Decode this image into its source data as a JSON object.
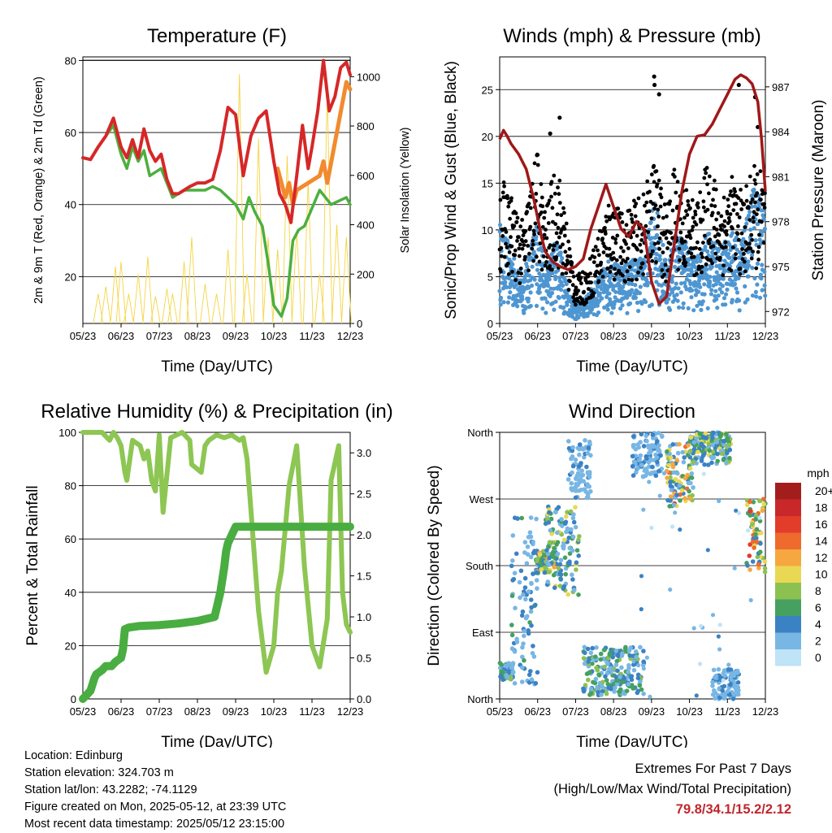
{
  "chart_data": [
    {
      "type": "line",
      "title": "Temperature (F)",
      "xlabel": "Time (Day/UTC)",
      "ylabel": "2m & 9m T (Red, Orange) & 2m Td (Green)",
      "y2label": "Solar Insolation (Yellow)",
      "x_ticks": [
        "05/23",
        "06/23",
        "07/23",
        "08/23",
        "09/23",
        "10/23",
        "11/23",
        "12/23"
      ],
      "ylim": [
        7,
        81
      ],
      "y_ticks": [
        20,
        40,
        60,
        80
      ],
      "y2lim": [
        0,
        1080
      ],
      "y2_ticks": [
        0,
        200,
        400,
        600,
        800,
        1000
      ],
      "grid": true,
      "series": [
        {
          "name": "2m T",
          "color": "#d62728",
          "x": [
            0,
            0.2,
            0.4,
            0.6,
            0.8,
            1,
            1.15,
            1.3,
            1.45,
            1.6,
            1.75,
            1.9,
            2.05,
            2.2,
            2.35,
            2.5,
            2.65,
            2.8,
            3,
            3.2,
            3.4,
            3.6,
            3.8,
            4,
            4.2,
            4.4,
            4.6,
            4.8,
            5,
            5.15,
            5.3,
            5.45,
            5.6,
            5.75,
            5.9,
            6,
            6.15,
            6.3,
            6.45,
            6.6,
            6.75,
            6.9,
            7
          ],
          "y": [
            53,
            52.5,
            56,
            59,
            64,
            56,
            53,
            58,
            53,
            61,
            55,
            52,
            54,
            47,
            43,
            43,
            44,
            45,
            46,
            46,
            47,
            55,
            67,
            65,
            48,
            59,
            64,
            66,
            52,
            43,
            40,
            35,
            48,
            62,
            50,
            56,
            66,
            80,
            66,
            70,
            78,
            79.5,
            76
          ]
        },
        {
          "name": "9m T",
          "color": "#f28a2e",
          "x": [
            5.1,
            5.2,
            5.3,
            5.4,
            5.5,
            5.6,
            6.2,
            6.3,
            6.4,
            6.9,
            7
          ],
          "y": [
            50,
            46,
            42,
            46,
            40,
            44,
            48,
            52,
            46,
            74,
            72
          ]
        },
        {
          "name": "2m Td",
          "color": "#4caf3e",
          "x": [
            0,
            0.2,
            0.4,
            0.6,
            0.8,
            1,
            1.15,
            1.3,
            1.45,
            1.6,
            1.75,
            1.9,
            2.05,
            2.2,
            2.35,
            2.5,
            2.65,
            2.8,
            3,
            3.2,
            3.4,
            3.6,
            3.8,
            4,
            4.2,
            4.35,
            4.5,
            4.7,
            4.85,
            5,
            5.2,
            5.35,
            5.5,
            5.65,
            5.8,
            6.2,
            6.5,
            6.9,
            7
          ],
          "y": [
            53,
            52.5,
            56,
            59,
            62,
            54,
            50,
            56,
            52,
            55,
            48,
            49,
            50,
            46,
            42,
            43,
            44,
            44,
            44,
            44,
            45,
            44,
            42,
            40,
            36,
            42,
            38,
            34,
            24,
            12,
            9,
            14,
            30,
            33,
            34,
            44,
            40,
            42,
            40
          ]
        },
        {
          "name": "Solar Insolation",
          "color": "#f5d442",
          "axis": "y2",
          "peaks": [
            [
              0.4,
              120
            ],
            [
              0.6,
              150
            ],
            [
              0.85,
              230
            ],
            [
              1,
              250
            ],
            [
              1.2,
              120
            ],
            [
              1.45,
              200
            ],
            [
              1.7,
              270
            ],
            [
              1.9,
              110
            ],
            [
              2.2,
              140
            ],
            [
              2.35,
              120
            ],
            [
              2.65,
              250
            ],
            [
              2.85,
              350
            ],
            [
              3.2,
              160
            ],
            [
              3.5,
              120
            ],
            [
              3.8,
              300
            ],
            [
              4.1,
              1010
            ],
            [
              4.3,
              200
            ],
            [
              4.6,
              750
            ],
            [
              4.85,
              350
            ],
            [
              5.1,
              300
            ],
            [
              5.35,
              680
            ],
            [
              5.6,
              380
            ],
            [
              5.9,
              580
            ],
            [
              6.2,
              200
            ],
            [
              6.4,
              950
            ],
            [
              6.65,
              400
            ],
            [
              6.9,
              350
            ]
          ]
        }
      ]
    },
    {
      "type": "scatter",
      "title": "Winds (mph) & Pressure (mb)",
      "xlabel": "Time (Day/UTC)",
      "ylabel": "Sonic/Prop Wind & Gust (Blue, Black)",
      "y2label": "Station Pressure (Maroon)",
      "x_ticks": [
        "05/23",
        "06/23",
        "07/23",
        "08/23",
        "09/23",
        "10/23",
        "11/23",
        "12/23"
      ],
      "ylim": [
        0,
        28.5
      ],
      "y_ticks": [
        0,
        5,
        10,
        15,
        20,
        25
      ],
      "y2lim": [
        971.2,
        989
      ],
      "y2_ticks": [
        972,
        975,
        978,
        981,
        984,
        987
      ],
      "grid": true,
      "series": [
        {
          "name": "Gust",
          "color": "#000000",
          "envelope": [
            [
              0,
              16
            ],
            [
              0.3,
              14
            ],
            [
              0.6,
              11
            ],
            [
              0.9,
              17
            ],
            [
              1,
              19
            ],
            [
              1.2,
              12
            ],
            [
              1.5,
              18
            ],
            [
              1.8,
              10
            ],
            [
              2,
              5
            ],
            [
              2.3,
              6
            ],
            [
              2.6,
              10
            ],
            [
              2.9,
              14
            ],
            [
              3.2,
              12
            ],
            [
              3.5,
              13
            ],
            [
              3.8,
              14
            ],
            [
              4.1,
              18
            ],
            [
              4.4,
              12
            ],
            [
              4.6,
              17
            ],
            [
              4.9,
              15
            ],
            [
              5.2,
              13
            ],
            [
              5.5,
              18
            ],
            [
              5.8,
              14
            ],
            [
              6.1,
              16
            ],
            [
              6.4,
              14
            ],
            [
              6.7,
              17
            ],
            [
              7,
              16
            ]
          ],
          "extra": [
            [
              1.33,
              20.3
            ],
            [
              1.58,
              22
            ],
            [
              4.08,
              25.5
            ],
            [
              4.07,
              26.4
            ],
            [
              4.2,
              24.5
            ],
            [
              6.3,
              25.5
            ],
            [
              6.73,
              24.2
            ],
            [
              6.8,
              21
            ]
          ]
        },
        {
          "name": "Wind",
          "color": "#4e96d1",
          "envelope": [
            [
              0,
              11
            ],
            [
              0.3,
              8
            ],
            [
              0.6,
              5
            ],
            [
              0.9,
              10
            ],
            [
              1,
              12
            ],
            [
              1.2,
              5
            ],
            [
              1.5,
              10
            ],
            [
              1.8,
              4
            ],
            [
              2,
              2
            ],
            [
              2.3,
              3
            ],
            [
              2.6,
              5
            ],
            [
              2.9,
              7
            ],
            [
              3.2,
              6
            ],
            [
              3.5,
              7
            ],
            [
              3.8,
              7
            ],
            [
              4.1,
              14
            ],
            [
              4.4,
              6
            ],
            [
              4.6,
              10
            ],
            [
              4.9,
              9
            ],
            [
              5.2,
              7
            ],
            [
              5.5,
              10
            ],
            [
              5.8,
              8
            ],
            [
              6.1,
              10
            ],
            [
              6.4,
              9
            ],
            [
              6.7,
              15
            ],
            [
              7,
              12
            ]
          ]
        },
        {
          "name": "Station Pressure",
          "color": "#a01818",
          "axis": "y2",
          "x": [
            0,
            0.1,
            0.2,
            0.3,
            0.5,
            0.7,
            0.9,
            1.1,
            1.2,
            1.4,
            1.6,
            1.8,
            2,
            2.2,
            2.4,
            2.6,
            2.8,
            3,
            3.2,
            3.4,
            3.6,
            3.8,
            4,
            4.2,
            4.4,
            4.6,
            4.8,
            5,
            5.2,
            5.4,
            5.6,
            5.8,
            6,
            6.2,
            6.35,
            6.5,
            6.65,
            6.8,
            6.9,
            7
          ],
          "y": [
            983.5,
            984.1,
            983.7,
            983.2,
            982.5,
            981.5,
            979.5,
            977,
            976,
            975.3,
            975,
            974.8,
            975,
            975.5,
            977.5,
            979,
            980.5,
            979,
            977.5,
            977,
            978,
            977.5,
            974,
            972.5,
            973,
            976.5,
            980,
            982.5,
            983.7,
            983.8,
            984.5,
            985.5,
            986.5,
            987.5,
            987.8,
            987.6,
            987.2,
            986,
            983.5,
            980
          ]
        }
      ]
    },
    {
      "type": "line",
      "title": "Relative Humidity (%) & Precipitation (in)",
      "xlabel": "Time (Day/UTC)",
      "ylabel": "Percent & Total Rainfall",
      "x_ticks": [
        "05/23",
        "06/23",
        "07/23",
        "08/23",
        "09/23",
        "10/23",
        "11/23",
        "12/23"
      ],
      "ylim": [
        0,
        100
      ],
      "y_ticks": [
        0,
        20,
        40,
        60,
        80,
        100
      ],
      "y2lim": [
        0,
        3.25
      ],
      "y2_ticks": [
        "0.0",
        "0.5",
        "1.0",
        "1.5",
        "2.0",
        "2.5",
        "3.0"
      ],
      "grid": true,
      "series": [
        {
          "name": "Relative Humidity",
          "color": "#8dc653",
          "x": [
            0,
            0.5,
            0.7,
            0.8,
            0.9,
            1,
            1.1,
            1.15,
            1.3,
            1.5,
            1.6,
            1.7,
            1.8,
            1.9,
            2,
            2.1,
            2.3,
            2.6,
            2.8,
            2.85,
            3.1,
            3.2,
            3.3,
            3.5,
            3.7,
            3.9,
            4.1,
            4.2,
            4.3,
            4.6,
            4.8,
            5,
            5.1,
            5.2,
            5.4,
            5.6,
            5.8,
            6,
            6.2,
            6.4,
            6.5,
            6.7,
            6.8,
            6.9,
            7
          ],
          "y": [
            100,
            100,
            97,
            100,
            98,
            95,
            85,
            82,
            97,
            95,
            90,
            93,
            82,
            78,
            99,
            70,
            98,
            100,
            97,
            88,
            85,
            95,
            97,
            99,
            98,
            99,
            97,
            98,
            90,
            33,
            10,
            20,
            40,
            48,
            80,
            95,
            50,
            20,
            12,
            30,
            82,
            95,
            40,
            28,
            25
          ]
        },
        {
          "name": "Total Rainfall",
          "color": "#49ad41",
          "axis": "y2",
          "x": [
            0,
            0.1,
            0.2,
            0.3,
            0.35,
            0.5,
            0.6,
            0.75,
            0.85,
            1,
            1.05,
            1.1,
            1.2,
            1.5,
            2,
            2.5,
            3,
            3.45,
            3.6,
            3.7,
            3.75,
            3.8,
            4,
            4.5,
            5,
            5.5,
            6,
            6.5,
            7
          ],
          "y": [
            0,
            0.05,
            0.1,
            0.25,
            0.3,
            0.35,
            0.4,
            0.4,
            0.45,
            0.5,
            0.6,
            0.85,
            0.87,
            0.89,
            0.9,
            0.92,
            0.95,
            1.0,
            1.3,
            1.6,
            1.8,
            1.9,
            2.1,
            2.1,
            2.1,
            2.1,
            2.1,
            2.1,
            2.1
          ]
        }
      ]
    },
    {
      "type": "scatter",
      "title": "Wind Direction",
      "xlabel": "Time (Day/UTC)",
      "ylabel": "Direction (Colored By Speed)",
      "x_ticks": [
        "05/23",
        "06/23",
        "07/23",
        "08/23",
        "09/23",
        "10/23",
        "11/23",
        "12/23"
      ],
      "y_ticks": [
        "North",
        "East",
        "South",
        "West",
        "North"
      ],
      "ylim": [
        0,
        360
      ],
      "colorbar_title": "mph",
      "colorbar_labels": [
        "20+",
        "18",
        "16",
        "14",
        "12",
        "10",
        "8",
        "6",
        "4",
        "2",
        "0"
      ],
      "colorbar_colors": [
        "#a31d1d",
        "#c8282a",
        "#e23c2a",
        "#ee6a2d",
        "#f6a73f",
        "#e9d853",
        "#8cc152",
        "#46a060",
        "#3b82c4",
        "#78b6e4",
        "#bfe3f7"
      ],
      "grid": true,
      "clusters": [
        {
          "x": [
            0,
            0.35
          ],
          "dir": [
            25,
            50
          ],
          "speed": [
            2,
            8
          ]
        },
        {
          "x": [
            0.3,
            1.0
          ],
          "dir": [
            20,
            250
          ],
          "speed": [
            1,
            6
          ]
        },
        {
          "x": [
            0.95,
            1.5
          ],
          "dir": [
            170,
            200
          ],
          "speed": [
            4,
            12
          ]
        },
        {
          "x": [
            1.2,
            2.1
          ],
          "dir": [
            140,
            260
          ],
          "speed": [
            2,
            10
          ]
        },
        {
          "x": [
            1.8,
            2.4
          ],
          "dir": [
            270,
            350
          ],
          "speed": [
            1,
            4
          ]
        },
        {
          "x": [
            2.2,
            3.8
          ],
          "dir": [
            5,
            70
          ],
          "speed": [
            2,
            8
          ]
        },
        {
          "x": [
            3.5,
            4.3
          ],
          "dir": [
            300,
            360
          ],
          "speed": [
            1,
            4
          ]
        },
        {
          "x": [
            4.4,
            5.1
          ],
          "dir": [
            260,
            345
          ],
          "speed": [
            2,
            16
          ]
        },
        {
          "x": [
            5.0,
            6.1
          ],
          "dir": [
            315,
            360
          ],
          "speed": [
            2,
            10
          ]
        },
        {
          "x": [
            5.6,
            6.3
          ],
          "dir": [
            0,
            40
          ],
          "speed": [
            1,
            5
          ]
        },
        {
          "x": [
            6.5,
            7.0
          ],
          "dir": [
            170,
            270
          ],
          "speed": [
            4,
            16
          ]
        }
      ]
    }
  ],
  "footer": {
    "location": "Location: Edinburg",
    "elevation": "Station elevation: 324.703 m",
    "latlon": "Station lat/lon: 43.2282; -74.1129",
    "created": "Figure created on Mon, 2025-05-12, at 23:39 UTC",
    "recent": "Most recent data timestamp: 2025/05/12 23:15:00"
  },
  "extremes": {
    "title": "Extremes For Past 7 Days",
    "subtitle": "(High/Low/Max Wind/Total Precipitation)",
    "values": "79.8/34.1/15.2/2.12"
  }
}
